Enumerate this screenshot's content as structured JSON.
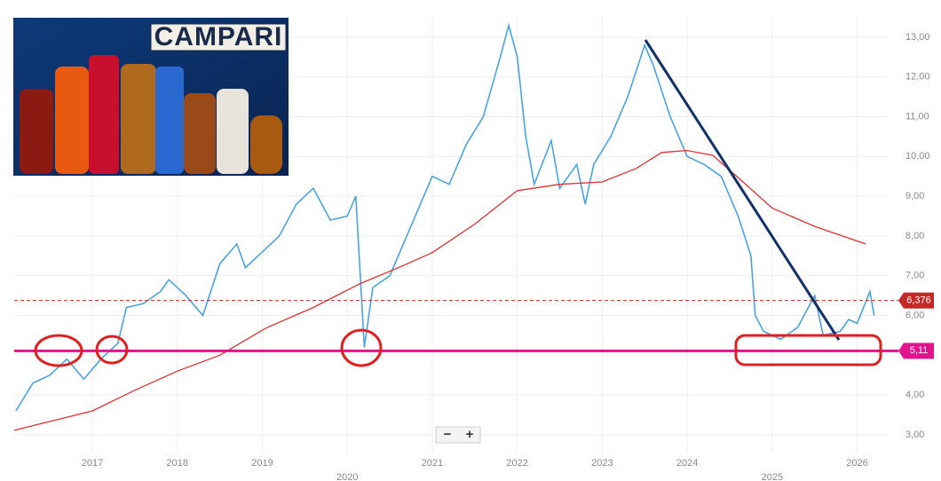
{
  "brand_banner": "CAMPARI",
  "zoom_controls": [
    "−",
    "+"
  ],
  "chart_data": {
    "type": "line",
    "xlim": [
      2016.08,
      2026.36
    ],
    "xticks": [
      2017,
      2018,
      2019,
      2020,
      2021,
      2022,
      2023,
      2024,
      2025,
      2026
    ],
    "ylim": [
      2.55,
      13.49
    ],
    "yticks": [
      {
        "value": 3,
        "label": "3,00"
      },
      {
        "value": 4,
        "label": "4,00"
      },
      {
        "value": 5,
        "label": "5,00"
      },
      {
        "value": 6,
        "label": "6,00"
      },
      {
        "value": 7,
        "label": "7,00"
      },
      {
        "value": 8,
        "label": "8,00"
      },
      {
        "value": 9,
        "label": "9,00"
      },
      {
        "value": 10,
        "label": "10,00"
      },
      {
        "value": 11,
        "label": "11,00"
      },
      {
        "value": 12,
        "label": "12,00"
      },
      {
        "value": 13,
        "label": "13,00"
      }
    ],
    "grid": true,
    "series": [
      {
        "color": "#4aa3df",
        "x": [
          2016.1,
          2016.3,
          2016.5,
          2016.7,
          2016.9,
          2017.1,
          2017.3,
          2017.4,
          2017.6,
          2017.8,
          2017.9,
          2018.1,
          2018.3,
          2018.5,
          2018.7,
          2018.8,
          2019.0,
          2019.2,
          2019.4,
          2019.6,
          2019.8,
          2020.0,
          2020.1,
          2020.2,
          2020.3,
          2020.5,
          2020.7,
          2020.9,
          2021.0,
          2021.2,
          2021.4,
          2021.6,
          2021.8,
          2021.9,
          2022.0,
          2022.1,
          2022.2,
          2022.4,
          2022.5,
          2022.7,
          2022.8,
          2022.9,
          2023.1,
          2023.3,
          2023.5,
          2023.6,
          2023.8,
          2024.0,
          2024.2,
          2024.4,
          2024.6,
          2024.75,
          2024.8,
          2024.9,
          2025.1,
          2025.3,
          2025.5,
          2025.6,
          2025.8,
          2025.9,
          2026.0,
          2026.15,
          2026.2
        ],
        "values": [
          3.6,
          4.3,
          4.5,
          4.9,
          4.4,
          4.9,
          5.3,
          6.2,
          6.3,
          6.6,
          6.9,
          6.5,
          6.0,
          7.3,
          7.8,
          7.2,
          7.6,
          8.0,
          8.8,
          9.2,
          8.4,
          8.5,
          9.0,
          5.2,
          6.7,
          7.0,
          8.0,
          9.0,
          9.5,
          9.3,
          10.3,
          11.0,
          12.5,
          13.3,
          12.5,
          10.5,
          9.3,
          10.4,
          9.2,
          9.8,
          8.8,
          9.8,
          10.5,
          11.5,
          12.8,
          12.3,
          11.0,
          10.0,
          9.8,
          9.5,
          8.5,
          7.5,
          6.0,
          5.6,
          5.4,
          5.7,
          6.5,
          5.5,
          5.6,
          5.9,
          5.8,
          6.6,
          6.0
        ]
      },
      {
        "color": "#e03030",
        "x": [
          2016.08,
          2017.0,
          2017.5,
          2018.0,
          2018.5,
          2019.04,
          2019.6,
          2020.15,
          2020.6,
          2021.0,
          2021.5,
          2022.0,
          2022.5,
          2023.0,
          2023.4,
          2023.7,
          2024.0,
          2024.3,
          2024.6,
          2025.0,
          2025.5,
          2026.1
        ],
        "values": [
          3.11,
          3.6,
          4.12,
          4.6,
          5.0,
          5.68,
          6.2,
          6.8,
          7.2,
          7.58,
          8.3,
          9.14,
          9.3,
          9.36,
          9.7,
          10.1,
          10.15,
          10.03,
          9.47,
          8.7,
          8.24,
          7.8
        ]
      }
    ],
    "levels": [
      {
        "value": 6.376,
        "label": "6,376",
        "color": "#c62828",
        "dashed": true
      },
      {
        "value": 5.11,
        "label": "5,11",
        "color": "#e0148c",
        "dashed": false
      }
    ]
  }
}
